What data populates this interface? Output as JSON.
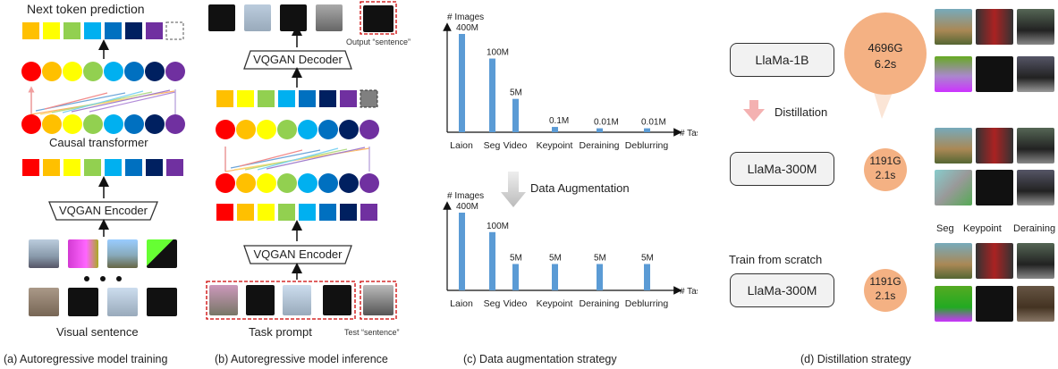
{
  "panel_a": {
    "title": "Next token prediction",
    "transformer_label": "Causal transformer",
    "encoder_label": "VQGAN Encoder",
    "input_label": "Visual sentence",
    "caption": "(a) Autoregressive model training"
  },
  "panel_b": {
    "output_label": "Output “sentence”",
    "decoder_label": "VQGAN Decoder",
    "encoder_label": "VQGAN Encoder",
    "prompt_label": "Task prompt",
    "test_label": "Test “sentence”",
    "caption": "(b) Autoregressive model inference"
  },
  "panel_c": {
    "augmentation_label": "Data Augmentation",
    "caption": "(c) Data augmentation strategy"
  },
  "panel_d": {
    "model_large": "LlaMa-1B",
    "distill_label": "Distillation",
    "model_small": "LlaMa-300M",
    "scratch_label": "Train from scratch",
    "model_scratch": "LlaMa-300M",
    "cost_large_flops": "4696G",
    "cost_large_time": "6.2s",
    "cost_small_flops": "1191G",
    "cost_small_time": "2.1s",
    "cost_scratch_flops": "1191G",
    "cost_scratch_time": "2.1s",
    "task_labels": [
      "Seg",
      "Keypoint",
      "Deraining"
    ],
    "caption": "(d) Distillation strategy"
  },
  "chart_data": [
    {
      "type": "bar",
      "ylabel": "# Images",
      "xlabel": "# Tasks",
      "categories": [
        "Laion",
        "Seg",
        "Video",
        "Keypoint",
        "Deraining",
        "Deblurring"
      ],
      "values": [
        400,
        100,
        5,
        0.1,
        0.01,
        0.01
      ],
      "data_labels": [
        "400M",
        "100M",
        "5M",
        "0.1M",
        "0.01M",
        "0.01M"
      ],
      "scale": "log",
      "bar_color": "#5b9bd5"
    },
    {
      "type": "bar",
      "ylabel": "# Images",
      "xlabel": "# Tasks",
      "categories": [
        "Laion",
        "Seg",
        "Video",
        "Keypoint",
        "Deraining",
        "Deblurring"
      ],
      "values": [
        400,
        100,
        5,
        5,
        5,
        5
      ],
      "data_labels": [
        "400M",
        "100M",
        "5M",
        "5M",
        "5M",
        "5M"
      ],
      "scale": "log",
      "bar_color": "#5b9bd5"
    }
  ]
}
